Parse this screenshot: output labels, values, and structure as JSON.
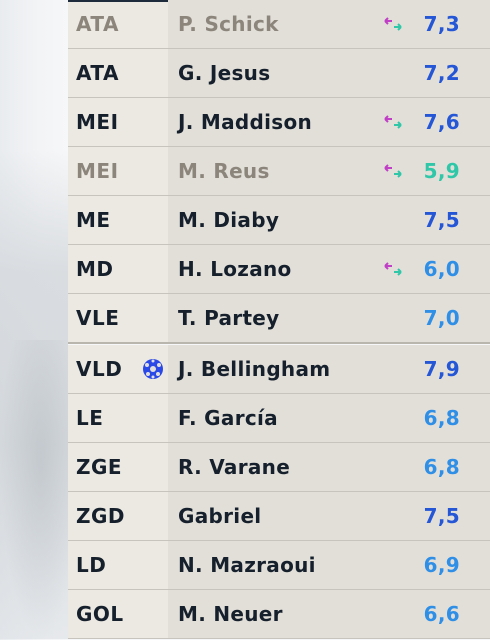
{
  "players": [
    {
      "position": "ATA",
      "name": "P. Schick",
      "rating": "7,3",
      "rating_color": "#2456d6",
      "dim": true,
      "sub_icon": "substitution-arrows-icon",
      "ball_icon": false
    },
    {
      "position": "ATA",
      "name": "G. Jesus",
      "rating": "7,2",
      "rating_color": "#2456d6",
      "dim": false,
      "sub_icon": null,
      "ball_icon": false
    },
    {
      "position": "MEI",
      "name": "J. Maddison",
      "rating": "7,6",
      "rating_color": "#2456d6",
      "dim": false,
      "sub_icon": "substitution-arrows-icon",
      "ball_icon": false
    },
    {
      "position": "MEI",
      "name": "M. Reus",
      "rating": "5,9",
      "rating_color": "#2fc7a8",
      "dim": true,
      "sub_icon": "substitution-arrows-icon",
      "ball_icon": false
    },
    {
      "position": "ME",
      "name": "M. Diaby",
      "rating": "7,5",
      "rating_color": "#2456d6",
      "dim": false,
      "sub_icon": null,
      "ball_icon": false
    },
    {
      "position": "MD",
      "name": "H. Lozano",
      "rating": "6,0",
      "rating_color": "#2f8fe6",
      "dim": false,
      "sub_icon": "substitution-arrows-icon",
      "ball_icon": false
    },
    {
      "position": "VLE",
      "name": "T. Partey",
      "rating": "7,0",
      "rating_color": "#2f8fe6",
      "dim": false,
      "sub_icon": null,
      "ball_icon": false
    },
    {
      "position": "VLD",
      "name": "J. Bellingham",
      "rating": "7,9",
      "rating_color": "#2456d6",
      "dim": false,
      "sub_icon": null,
      "ball_icon": true
    },
    {
      "position": "LE",
      "name": "F. García",
      "rating": "6,8",
      "rating_color": "#2f8fe6",
      "dim": false,
      "sub_icon": null,
      "ball_icon": false
    },
    {
      "position": "ZGE",
      "name": "R. Varane",
      "rating": "6,8",
      "rating_color": "#2f8fe6",
      "dim": false,
      "sub_icon": null,
      "ball_icon": false
    },
    {
      "position": "ZGD",
      "name": "Gabriel",
      "rating": "7,5",
      "rating_color": "#2456d6",
      "dim": false,
      "sub_icon": null,
      "ball_icon": false
    },
    {
      "position": "LD",
      "name": "N. Mazraoui",
      "rating": "6,9",
      "rating_color": "#2f8fe6",
      "dim": false,
      "sub_icon": null,
      "ball_icon": false
    },
    {
      "position": "GOL",
      "name": "M. Neuer",
      "rating": "6,6",
      "rating_color": "#2f8fe6",
      "dim": false,
      "sub_icon": null,
      "ball_icon": false
    }
  ],
  "colors": {
    "sub_arrow_left": "#c13fc6",
    "sub_arrow_right": "#2fc7a8",
    "ball": "#2a47e8"
  }
}
